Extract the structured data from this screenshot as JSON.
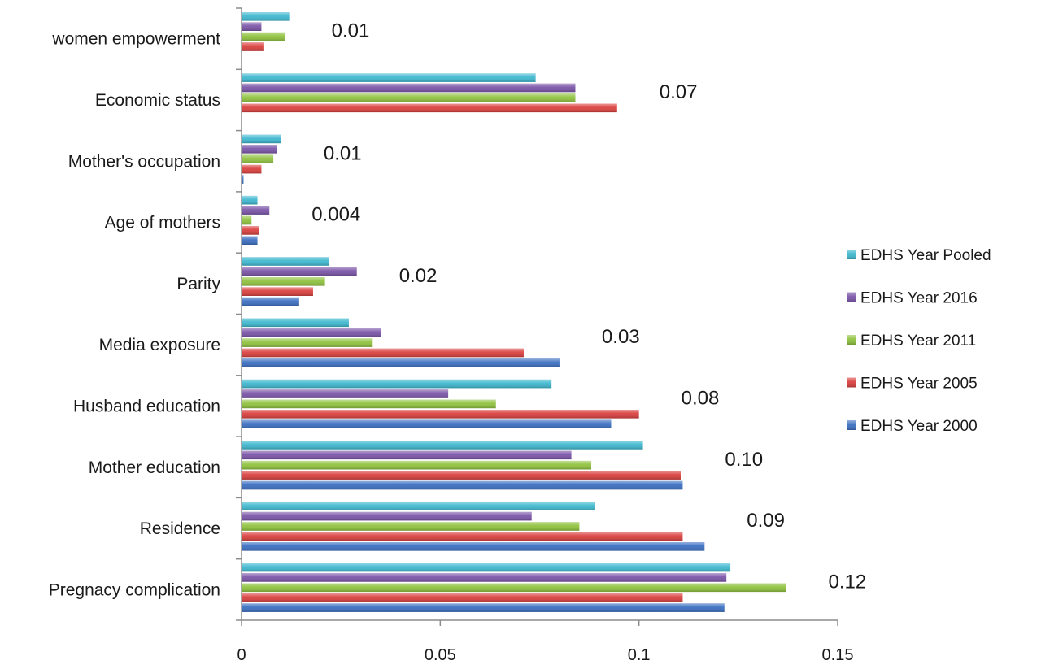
{
  "chart_data": {
    "type": "bar",
    "orientation": "horizontal",
    "title": "",
    "xlabel": "",
    "ylabel": "",
    "xlim": [
      0,
      0.15
    ],
    "x_ticks": [
      "0",
      "0.05",
      "0.1",
      "0.15"
    ],
    "x_tick_values": [
      0,
      0.05,
      0.1,
      0.15
    ],
    "grid": false,
    "legend_position": "right",
    "categories": [
      "women empowerment",
      "Economic status",
      "Mother's occupation",
      "Age of mothers",
      "Parity",
      "Media exposure",
      "Husband education",
      "Mother education",
      "Residence",
      "Pregnacy complication"
    ],
    "annotations": [
      "0.01",
      "0.07",
      "0.01",
      "0.004",
      "0.02",
      "0.03",
      "0.08",
      "0.10",
      "0.09",
      "0.12"
    ],
    "series": [
      {
        "name": "EDHS Year Pooled",
        "color": "#3fb8cf",
        "values": [
          0.012,
          0.074,
          0.01,
          0.004,
          0.022,
          0.027,
          0.078,
          0.101,
          0.089,
          0.123
        ]
      },
      {
        "name": "EDHS Year 2016",
        "color": "#7b55a8",
        "values": [
          0.005,
          0.084,
          0.009,
          0.007,
          0.029,
          0.035,
          0.052,
          0.083,
          0.073,
          0.122
        ]
      },
      {
        "name": "EDHS Year 2011",
        "color": "#8fc23e",
        "values": [
          0.011,
          0.084,
          0.008,
          0.0025,
          0.021,
          0.033,
          0.064,
          0.088,
          0.085,
          0.137
        ]
      },
      {
        "name": "EDHS Year 2005",
        "color": "#d9403e",
        "values": [
          0.0055,
          0.0945,
          0.005,
          0.0045,
          0.018,
          0.071,
          0.1,
          0.1105,
          0.111,
          0.111
        ]
      },
      {
        "name": "EDHS Year 2000",
        "color": "#3b6fc1",
        "values": [
          0.0,
          0.0,
          0.0005,
          0.004,
          0.0145,
          0.08,
          0.093,
          0.111,
          0.1165,
          0.1215
        ]
      }
    ]
  }
}
